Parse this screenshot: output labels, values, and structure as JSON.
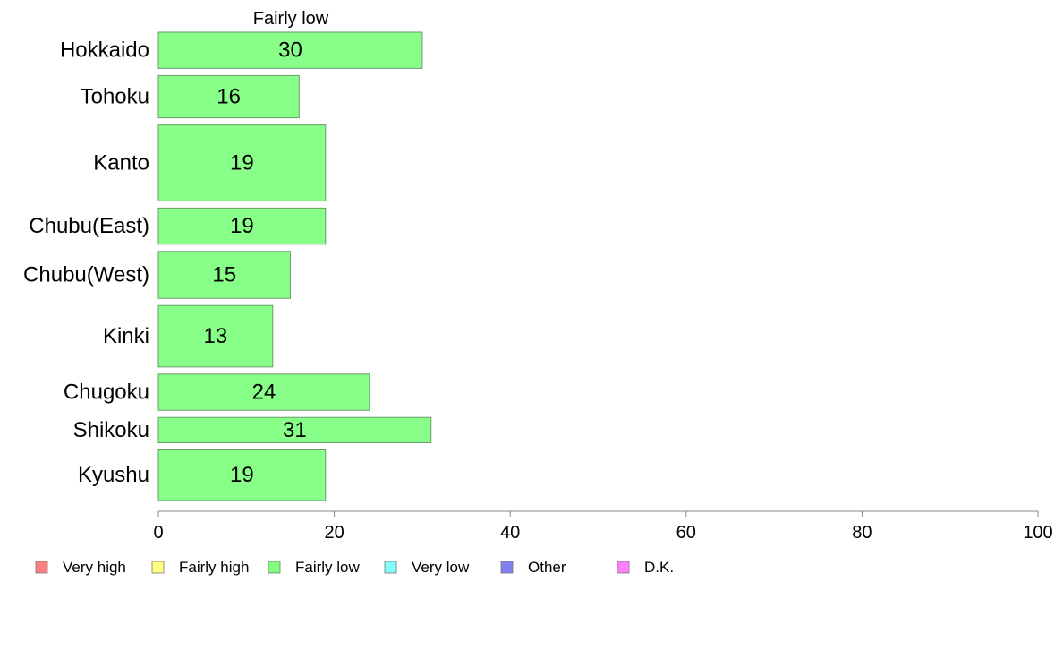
{
  "chart_data": {
    "type": "bar",
    "orientation": "horizontal",
    "title": "Fairly low",
    "categories": [
      "Hokkaido",
      "Tohoku",
      "Kanto",
      "Chubu(East)",
      "Chubu(West)",
      "Kinki",
      "Chugoku",
      "Shikoku",
      "Kyushu"
    ],
    "series": [
      {
        "name": "Fairly low",
        "values": [
          30,
          16,
          19,
          19,
          15,
          13,
          24,
          31,
          19
        ]
      }
    ],
    "relative_bar_widths": [
      1.0,
      1.17,
      2.1,
      1.0,
      1.3,
      1.7,
      1.0,
      0.7,
      1.4
    ],
    "xlim": [
      0,
      100
    ],
    "xticks": [
      0,
      20,
      40,
      60,
      80,
      100
    ],
    "grid": false,
    "legend_position": "bottom",
    "legend": [
      {
        "label": "Very high",
        "color": "#ff8080"
      },
      {
        "label": "Fairly high",
        "color": "#ffff80"
      },
      {
        "label": "Fairly low",
        "color": "#80ff80"
      },
      {
        "label": "Very low",
        "color": "#80ffff"
      },
      {
        "label": "Other",
        "color": "#8080f0"
      },
      {
        "label": "D.K.",
        "color": "#ff80ff"
      }
    ],
    "bar_color": "#88ff88"
  }
}
